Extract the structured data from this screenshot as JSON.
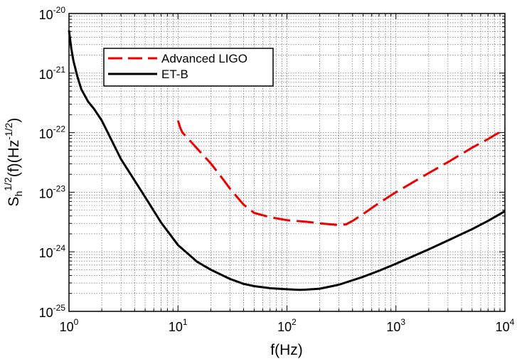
{
  "chart_data": {
    "type": "line",
    "xscale": "log",
    "yscale": "log",
    "xlim": [
      1,
      10000
    ],
    "ylim": [
      1e-25,
      1e-20
    ],
    "grid": true,
    "legend_position": "top-left",
    "xlabel": "f(Hz)",
    "ylabel": {
      "base": "S",
      "sub": "h",
      "sup1": "1/2",
      "mid": "(f)(Hz",
      "sup2": "-1/2",
      "end": ")"
    },
    "x_ticks": [
      {
        "value": 1,
        "base": "10",
        "exp": "0"
      },
      {
        "value": 10,
        "base": "10",
        "exp": "1"
      },
      {
        "value": 100,
        "base": "10",
        "exp": "2"
      },
      {
        "value": 1000,
        "base": "10",
        "exp": "3"
      },
      {
        "value": 10000,
        "base": "10",
        "exp": "4"
      }
    ],
    "y_ticks": [
      {
        "value": 1e-25,
        "base": "10",
        "exp": "-25"
      },
      {
        "value": 1e-24,
        "base": "10",
        "exp": "-24"
      },
      {
        "value": 1e-23,
        "base": "10",
        "exp": "-23"
      },
      {
        "value": 1e-22,
        "base": "10",
        "exp": "-22"
      },
      {
        "value": 1e-21,
        "base": "10",
        "exp": "-21"
      },
      {
        "value": 1e-20,
        "base": "10",
        "exp": "-20"
      }
    ],
    "series": [
      {
        "name": "Advanced LIGO",
        "color": "#ee0000",
        "style": "dashed",
        "x": [
          10,
          10.5,
          11,
          12.5,
          15,
          20,
          25,
          30,
          40,
          50,
          70,
          100,
          150,
          200,
          250,
          300,
          350,
          400,
          500,
          700,
          1000,
          2000,
          3000,
          5000,
          7000,
          10000
        ],
        "y": [
          1.6e-22,
          1.2e-22,
          1e-22,
          7.8e-23,
          5.4e-23,
          3.05e-23,
          1.8e-23,
          1.15e-23,
          6.2e-24,
          4.5e-24,
          3.8e-24,
          3.4e-24,
          3.2e-24,
          3e-24,
          2.9e-24,
          2.8e-24,
          2.9e-24,
          3.3e-24,
          4.3e-24,
          6.6e-24,
          1e-23,
          2.1e-23,
          3.2e-23,
          5.6e-23,
          7.8e-23,
          1.15e-22
        ]
      },
      {
        "name": "ET-B",
        "color": "#000000",
        "style": "solid",
        "x": [
          1,
          1.05,
          1.1,
          1.2,
          1.3,
          1.5,
          1.7,
          2,
          3,
          5,
          7,
          10,
          15,
          20,
          30,
          40,
          50,
          70,
          100,
          130,
          150,
          200,
          300,
          500,
          700,
          1000,
          2000,
          3000,
          5000,
          7000,
          10000
        ],
        "y": [
          5.2e-21,
          2.6e-21,
          1.6e-21,
          8.5e-22,
          5.3e-22,
          3.3e-22,
          2.5e-22,
          1.6e-22,
          3.6e-23,
          8.3e-24,
          3.1e-24,
          1.3e-24,
          6.8e-25,
          5e-25,
          3.5e-25,
          2.9e-25,
          2.65e-25,
          2.45e-25,
          2.35e-25,
          2.3e-25,
          2.32e-25,
          2.4e-25,
          2.8e-25,
          3.8e-25,
          4.8e-25,
          6.3e-25,
          1.1e-24,
          1.55e-24,
          2.4e-24,
          3.3e-24,
          4.8e-24
        ]
      }
    ]
  }
}
